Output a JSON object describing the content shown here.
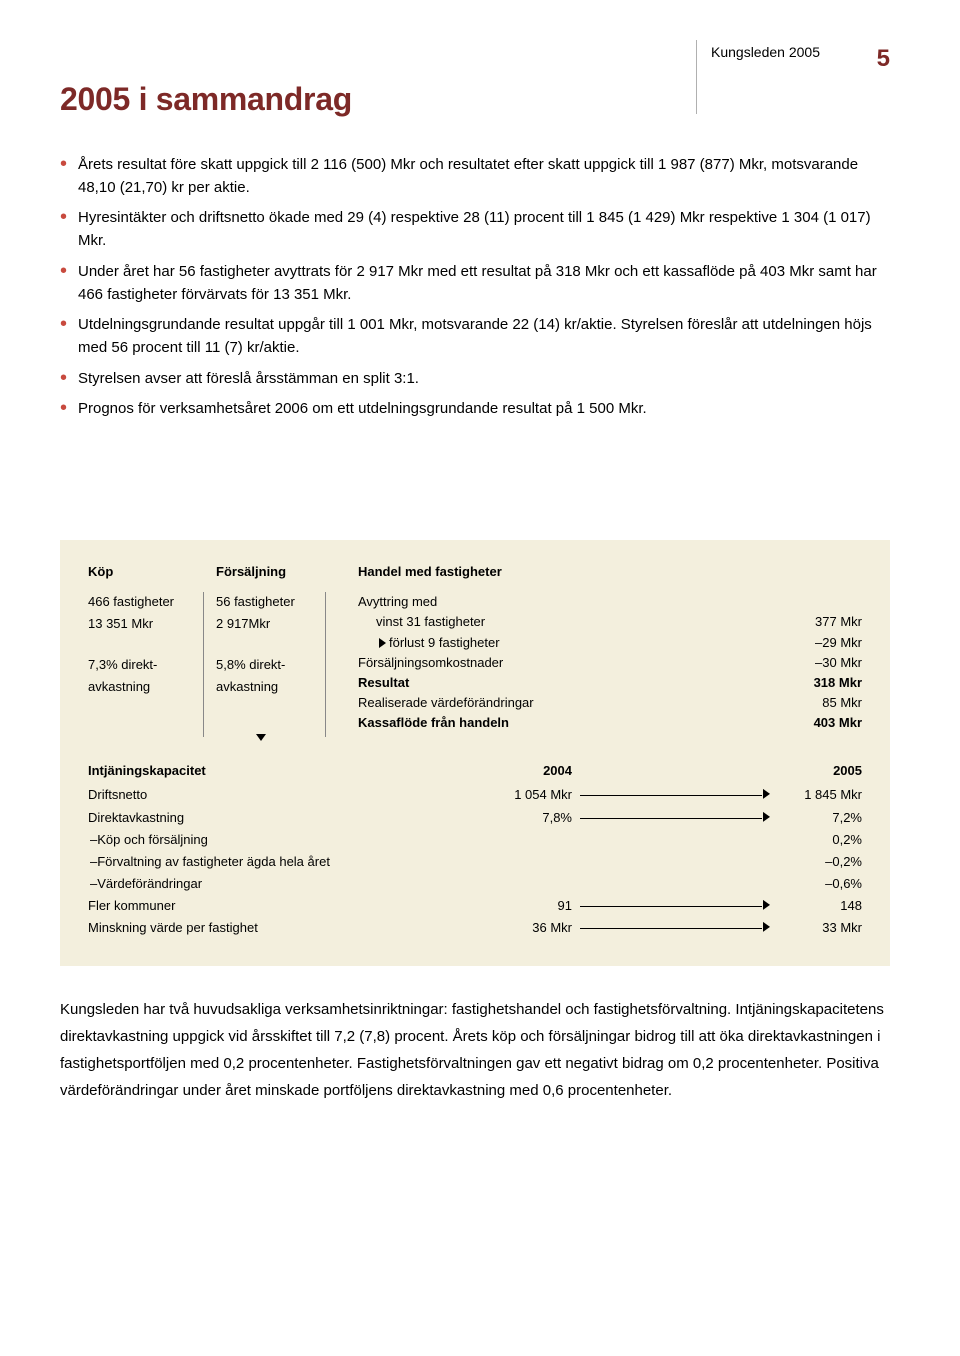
{
  "header": {
    "brand": "Kungsleden 2005",
    "page_number": "5",
    "title": "2005 i sammandrag"
  },
  "bullets": [
    "Årets resultat före skatt uppgick till 2 116 (500) Mkr och resultatet efter skatt uppgick till 1 987 (877) Mkr, motsvarande 48,10 (21,70) kr per aktie.",
    "Hyresintäkter och driftsnetto ökade med 29 (4) respektive 28 (11) procent till 1 845 (1 429) Mkr respektive 1 304 (1 017) Mkr.",
    "Under året har 56 fastigheter avyttrats för 2 917 Mkr med ett resultat på 318 Mkr och ett kassaflöde på 403 Mkr samt har 466 fastigheter förvärvats för 13 351 Mkr.",
    "Utdelningsgrundande resultat uppgår till 1 001 Mkr, motsvarande 22 (14) kr/aktie. Styrelsen föreslår att utdelningen höjs med 56 procent till 11 (7) kr/aktie.",
    "Styrelsen avser att föreslå årsstämman en split 3:1.",
    "Prognos för verksamhetsåret 2006 om ett utdelningsgrundande resultat på 1 500 Mkr."
  ],
  "colors": {
    "accent": "#7d2927",
    "bullet": "#c84a3e",
    "box_bg": "#f3efdd",
    "page_bg": "#ffffff",
    "text": "#000000"
  },
  "box": {
    "kop": {
      "head": "Köp",
      "l1": "466 fastigheter",
      "l2": "13 351 Mkr",
      "l3": "7,3% direkt-",
      "l4": "avkastning"
    },
    "fors": {
      "head": "Försäljning",
      "l1": "56 fastigheter",
      "l2": "2 917Mkr",
      "l3": "5,8% direkt-",
      "l4": "avkastning"
    },
    "handel": {
      "head": "Handel med fastigheter",
      "rows": [
        {
          "label": "Avyttring med",
          "value": "",
          "indent": false,
          "bold": false
        },
        {
          "label": "vinst 31 fastigheter",
          "value": "377 Mkr",
          "indent": true,
          "bold": false
        },
        {
          "label": "förlust 9 fastigheter",
          "value": "–29 Mkr",
          "indent": true,
          "bold": false
        },
        {
          "label": "Försäljningsomkostnader",
          "value": "–30 Mkr",
          "indent": false,
          "bold": false
        },
        {
          "label": "Resultat",
          "value": "318 Mkr",
          "indent": false,
          "bold": true
        },
        {
          "label": "Realiserade värdeförändringar",
          "value": "85 Mkr",
          "indent": false,
          "bold": false
        },
        {
          "label": "Kassaflöde från handeln",
          "value": "403 Mkr",
          "indent": false,
          "bold": true
        }
      ]
    },
    "intj": {
      "head_label": "Intjäningskapacitet",
      "head_2004": "2004",
      "head_2005": "2005",
      "rows": [
        {
          "label": "Driftsnetto",
          "v2004": "1 054 Mkr",
          "v2005": "1 845 Mkr",
          "arrow": true,
          "sub": false
        },
        {
          "label": "Direktavkastning",
          "v2004": "7,8%",
          "v2005": "7,2%",
          "arrow": true,
          "sub": false
        },
        {
          "label": "–Köp och försäljning",
          "v2004": "",
          "v2005": "0,2%",
          "arrow": false,
          "sub": true
        },
        {
          "label": "–Förvaltning av fastigheter ägda hela året",
          "v2004": "",
          "v2005": "–0,2%",
          "arrow": false,
          "sub": true
        },
        {
          "label": "–Värdeförändringar",
          "v2004": "",
          "v2005": "–0,6%",
          "arrow": false,
          "sub": true
        },
        {
          "label": "Fler kommuner",
          "v2004": "91",
          "v2005": "148",
          "arrow": true,
          "sub": false
        },
        {
          "label": "Minskning värde per fastighet",
          "v2004": "36 Mkr",
          "v2005": "33 Mkr",
          "arrow": true,
          "sub": false
        }
      ]
    }
  },
  "footer_para": "Kungsleden har två huvudsakliga verksamhetsinriktningar: fastighetshandel och fastighetsförvaltning. Intjäningskapacitetens direktavkastning uppgick vid årsskiftet till 7,2 (7,8) procent. Årets köp och försäljningar bidrog till att öka direktavkastningen i fastighetsportföljen med 0,2 procentenheter. Fastighetsförvaltningen gav ett negativt bidrag om 0,2 procentenheter. Positiva värdeförändringar under året minskade portföljens direktavkastning med 0,6 procentenheter."
}
